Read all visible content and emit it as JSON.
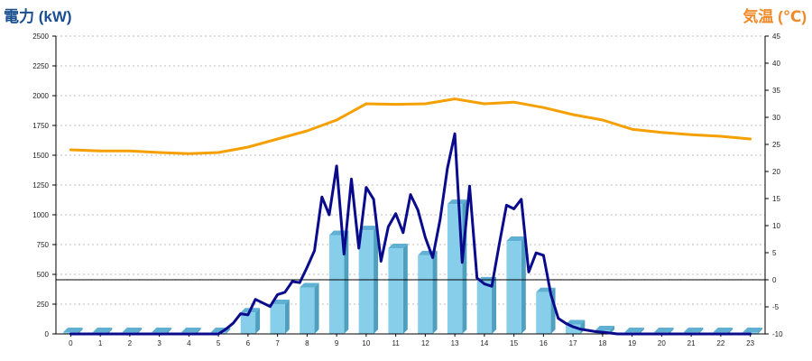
{
  "chart_data": {
    "type": "bar+line",
    "y1_label": "電力 (kW)",
    "y2_label": "気温 (℃)",
    "y1_range": [
      0,
      2500
    ],
    "y1_ticks": [
      0,
      250,
      500,
      750,
      1000,
      1250,
      1500,
      1750,
      2000,
      2250,
      2500
    ],
    "y2_range": [
      -10,
      45
    ],
    "y2_ticks": [
      -10,
      -5,
      0,
      5,
      10,
      15,
      20,
      25,
      30,
      35,
      40,
      45
    ],
    "categories": [
      "0",
      "1",
      "2",
      "3",
      "4",
      "5",
      "6",
      "7",
      "8",
      "9",
      "10",
      "11",
      "12",
      "13",
      "14",
      "15",
      "16",
      "17",
      "18",
      "19",
      "20",
      "21",
      "22",
      "23"
    ],
    "grid": true,
    "colors": {
      "bar": "#87ceeb",
      "bar_side": "#4f9fbf",
      "power_line": "#0a0a8c",
      "temp_line": "#f5a000",
      "y1_label": "#1a4f8f",
      "y2_label": "#f08a28"
    },
    "series": [
      {
        "kind": "bar",
        "axis": "y1",
        "values": [
          15,
          15,
          15,
          15,
          15,
          15,
          180,
          250,
          390,
          830,
          870,
          720,
          660,
          1090,
          440,
          780,
          350,
          80,
          30,
          15,
          15,
          15,
          15,
          15
        ]
      },
      {
        "kind": "line",
        "axis": "y1",
        "x": [
          0,
          0.5,
          1,
          1.5,
          2,
          2.5,
          3,
          3.5,
          4,
          4.5,
          5,
          5.25,
          5.5,
          5.75,
          6,
          6.25,
          6.5,
          6.75,
          7,
          7.25,
          7.5,
          7.75,
          8,
          8.25,
          8.5,
          8.75,
          9,
          9.25,
          9.5,
          9.75,
          10,
          10.25,
          10.5,
          10.75,
          11,
          11.25,
          11.5,
          11.75,
          12,
          12.25,
          12.5,
          12.75,
          13,
          13.25,
          13.5,
          13.75,
          14,
          14.25,
          14.5,
          14.75,
          15,
          15.25,
          15.5,
          15.75,
          16,
          16.25,
          16.5,
          16.75,
          17,
          17.25,
          17.5,
          17.75,
          18,
          18.5,
          19,
          19.5,
          20,
          20.5,
          21,
          21.5,
          22,
          22.5,
          23
        ],
        "values": [
          0,
          0,
          0,
          0,
          0,
          0,
          0,
          0,
          0,
          0,
          0,
          40,
          90,
          170,
          160,
          290,
          260,
          230,
          330,
          350,
          440,
          430,
          560,
          700,
          1150,
          1000,
          1410,
          670,
          1300,
          720,
          1230,
          1130,
          610,
          900,
          1010,
          850,
          1170,
          1040,
          810,
          640,
          960,
          1390,
          1680,
          600,
          1240,
          470,
          420,
          400,
          750,
          1080,
          1050,
          1130,
          520,
          680,
          660,
          330,
          130,
          90,
          60,
          40,
          30,
          20,
          15,
          0,
          0,
          0,
          0,
          0,
          0,
          0,
          0,
          0,
          0
        ]
      },
      {
        "kind": "line",
        "axis": "y2",
        "x": [
          0,
          1,
          2,
          3,
          4,
          5,
          6,
          7,
          8,
          9,
          10,
          11,
          12,
          13,
          14,
          15,
          16,
          17,
          18,
          19,
          20,
          21,
          22,
          23
        ],
        "values": [
          24,
          23.8,
          23.8,
          23.5,
          23.3,
          23.5,
          24.5,
          26,
          27.5,
          29.5,
          32.5,
          32.4,
          32.5,
          33.4,
          32.5,
          32.8,
          31.8,
          30.5,
          29.5,
          27.8,
          27.2,
          26.8,
          26.5,
          26
        ]
      }
    ]
  }
}
